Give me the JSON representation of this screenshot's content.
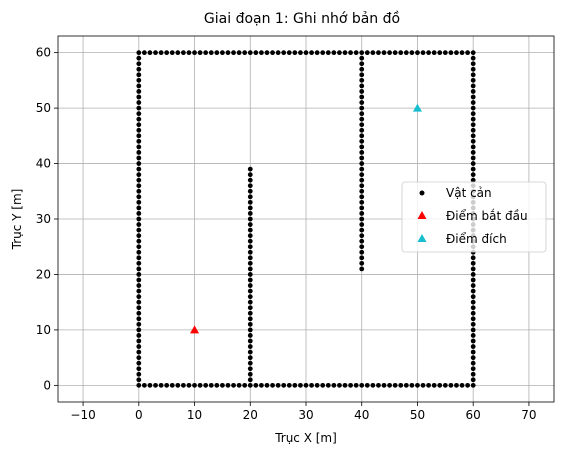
{
  "chart_data": {
    "type": "scatter",
    "title": "Giai đoạn 1: Ghi nhớ bản đồ",
    "xlabel": "Trục X [m]",
    "ylabel": "Trục Y [m]",
    "xlim": [
      -14.5,
      74.5
    ],
    "ylim": [
      -3,
      63
    ],
    "xticks": [
      -10,
      0,
      10,
      20,
      30,
      40,
      50,
      60,
      70
    ],
    "yticks": [
      0,
      10,
      20,
      30,
      40,
      50,
      60
    ],
    "grid": true,
    "legend_position": "center-right",
    "obstacle_segments": [
      {
        "from": [
          0,
          0
        ],
        "to": [
          60,
          0
        ],
        "step": 1
      },
      {
        "from": [
          0,
          60
        ],
        "to": [
          60,
          60
        ],
        "step": 1
      },
      {
        "from": [
          0,
          0
        ],
        "to": [
          0,
          60
        ],
        "step": 1
      },
      {
        "from": [
          60,
          0
        ],
        "to": [
          60,
          60
        ],
        "step": 1
      },
      {
        "from": [
          20,
          0
        ],
        "to": [
          20,
          39
        ],
        "step": 1
      },
      {
        "from": [
          40,
          21
        ],
        "to": [
          40,
          60
        ],
        "step": 1
      }
    ],
    "series": [
      {
        "name": "Vật cản",
        "marker": "dot",
        "color": "#000000"
      },
      {
        "name": "Điểm bắt đầu",
        "marker": "triangle",
        "color": "#ff0000",
        "points": [
          [
            10,
            10
          ]
        ]
      },
      {
        "name": "Điểm đích",
        "marker": "triangle",
        "color": "#17becf",
        "points": [
          [
            50,
            50
          ]
        ]
      }
    ]
  }
}
